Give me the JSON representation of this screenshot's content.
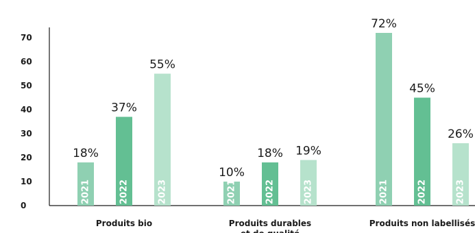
{
  "chart_data": {
    "type": "bar",
    "title": "",
    "xlabel": "",
    "ylabel": "",
    "ylim": [
      0,
      70
    ],
    "yticks": [
      0,
      10,
      20,
      30,
      40,
      50,
      60,
      70
    ],
    "categories": [
      "Produits bio",
      "Produits durables\net de qualité",
      "Produits non labellisés"
    ],
    "series": [
      {
        "name": "2021",
        "color": "#8fd0b2",
        "values": [
          18,
          10,
          72
        ],
        "labels": [
          "18%",
          "10%",
          "72%"
        ]
      },
      {
        "name": "2022",
        "color": "#63bf93",
        "values": [
          37,
          18,
          45
        ],
        "labels": [
          "37%",
          "18%",
          "45%"
        ]
      },
      {
        "name": "2023",
        "color": "#b6e2cc",
        "values": [
          55,
          19,
          26
        ],
        "labels": [
          "55%",
          "19%",
          "26%"
        ]
      }
    ],
    "grid": false,
    "legend": "none"
  }
}
